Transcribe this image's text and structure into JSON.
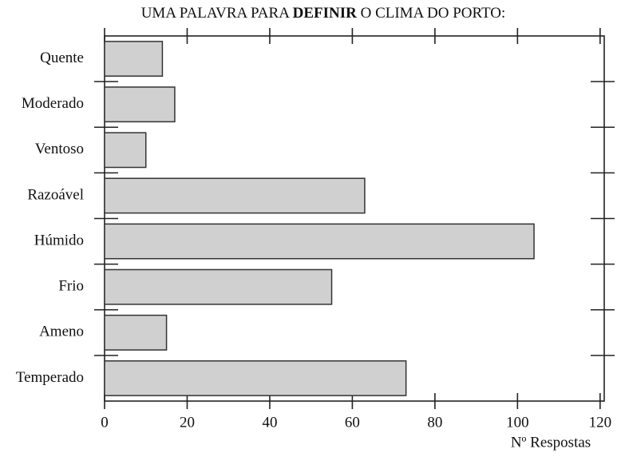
{
  "chart_data": {
    "type": "barh",
    "title": [
      "UMA PALAVRA PARA",
      "DEFINIR",
      "O CLIMA DO PORTO:"
    ],
    "xlabel": "Nº Respostas",
    "categories": [
      "Quente",
      "Moderado",
      "Ventoso",
      "Razoável",
      "Húmido",
      "Frio",
      "Ameno",
      "Temperado"
    ],
    "values": [
      14,
      17,
      10,
      63,
      104,
      55,
      15,
      73
    ],
    "color": "#d0d0d0",
    "xlim": [
      0,
      121
    ],
    "xticks": [
      0,
      20,
      40,
      60,
      80,
      100,
      120
    ]
  }
}
